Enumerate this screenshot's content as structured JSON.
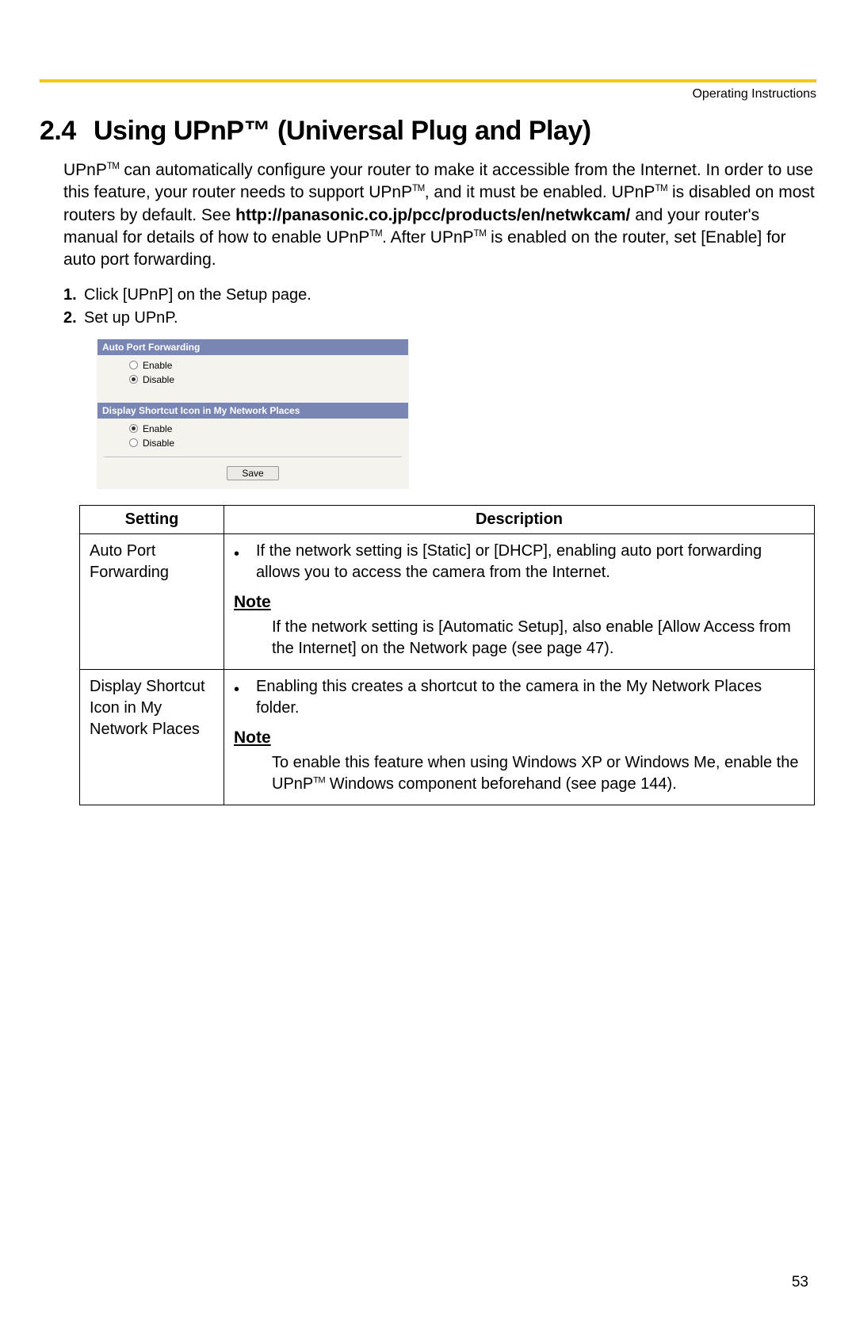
{
  "header_label": "Operating Instructions",
  "section_number": "2.4",
  "section_title": "Using UPnP™ (Universal Plug and Play)",
  "intro_part1": "UPnP",
  "intro_part2": " can automatically configure your router to make it accessible from the Internet. In order to use this feature, your router needs to support UPnP",
  "intro_part3": ", and it must be enabled. UPnP",
  "intro_part4": " is disabled on most routers by default. See ",
  "intro_url": "http://panasonic.co.jp/pcc/products/en/netwkcam/",
  "intro_part5": " and your router's manual for details of how to enable UPnP",
  "intro_part6": ". After UPnP",
  "intro_part7": " is enabled on the router, set [Enable] for auto port forwarding.",
  "steps": {
    "s1_num": "1.",
    "s1_text": "Click [UPnP] on the Setup page.",
    "s2_num": "2.",
    "s2_text": "Set up UPnP."
  },
  "ui": {
    "bar1": "Auto Port Forwarding",
    "bar1_enable": "Enable",
    "bar1_disable": "Disable",
    "bar2": "Display Shortcut Icon in My Network Places",
    "bar2_enable": "Enable",
    "bar2_disable": "Disable",
    "save": "Save",
    "colors": {
      "bar_bg": "#7985b3",
      "panel_bg": "#f4f3ee",
      "yellow_rule": "#f5c518"
    }
  },
  "table": {
    "th_setting": "Setting",
    "th_desc": "Description",
    "row1": {
      "setting": "Auto Port Forwarding",
      "bullet": "If the network setting is [Static] or [DHCP], enabling auto port forwarding allows you to access the camera from the Internet.",
      "note_head": "Note",
      "note_body": "If the network setting is [Automatic Setup], also enable [Allow Access from the Internet] on the Network page (see page 47)."
    },
    "row2": {
      "setting": "Display Shortcut Icon in My Network Places",
      "bullet": "Enabling this creates a shortcut to the camera in the My Network Places folder.",
      "note_head": "Note",
      "note_body_a": "To enable this feature when using Windows XP or Windows Me, enable the UPnP",
      "note_body_b": " Windows component beforehand (see page 144)."
    }
  },
  "page_number": "53"
}
